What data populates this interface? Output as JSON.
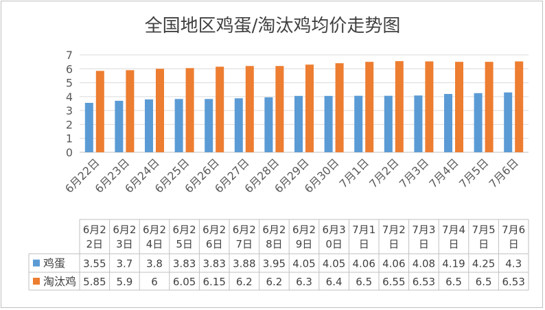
{
  "chart_data": {
    "type": "bar",
    "title": "全国地区鸡蛋/淘汰鸡均价走势图",
    "categories": [
      "6月22日",
      "6月23日",
      "6月24日",
      "6月25日",
      "6月26日",
      "6月27日",
      "6月28日",
      "6月29日",
      "6月30日",
      "7月1日",
      "7月2日",
      "7月3日",
      "7月4日",
      "7月5日",
      "7月6日"
    ],
    "table_headers": [
      [
        "6月2",
        "2日"
      ],
      [
        "6月2",
        "3日"
      ],
      [
        "6月2",
        "4日"
      ],
      [
        "6月2",
        "5日"
      ],
      [
        "6月2",
        "6日"
      ],
      [
        "6月2",
        "7日"
      ],
      [
        "6月2",
        "8日"
      ],
      [
        "6月2",
        "9日"
      ],
      [
        "6月3",
        "0日"
      ],
      [
        "7月1",
        "日"
      ],
      [
        "7月2",
        "日"
      ],
      [
        "7月3",
        "日"
      ],
      [
        "7月4",
        "日"
      ],
      [
        "7月5",
        "日"
      ],
      [
        "7月6",
        "日"
      ]
    ],
    "series": [
      {
        "name": "鸡蛋",
        "color": "#5b9bd5",
        "values": [
          3.55,
          3.7,
          3.8,
          3.83,
          3.83,
          3.88,
          3.95,
          4.05,
          4.05,
          4.06,
          4.06,
          4.08,
          4.19,
          4.25,
          4.3
        ]
      },
      {
        "name": "淘汰鸡",
        "color": "#ed7d31",
        "values": [
          5.85,
          5.9,
          6,
          6.05,
          6.15,
          6.2,
          6.2,
          6.3,
          6.4,
          6.5,
          6.55,
          6.53,
          6.5,
          6.5,
          6.53
        ]
      }
    ],
    "ylim": [
      0,
      7
    ],
    "yticks": [
      "0",
      "1",
      "2",
      "3",
      "4",
      "5",
      "6",
      "7"
    ],
    "grid": true,
    "legend": "data table"
  }
}
